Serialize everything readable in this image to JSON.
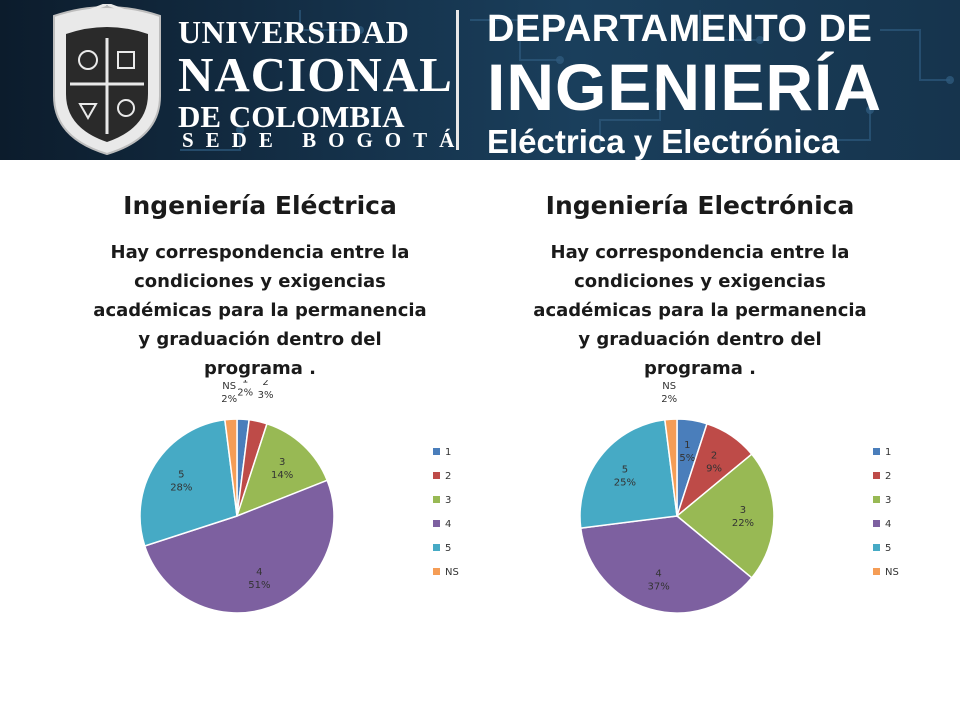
{
  "banner": {
    "university_line1": "UNIVERSIDAD",
    "university_line2": "NACIONAL",
    "university_line3": "DE COLOMBIA",
    "sede": "SEDE BOGOTÁ",
    "dept_line1": "DEPARTAMENTO DE",
    "dept_line2": "INGENIERÍA",
    "dept_line3": "Eléctrica y Electrónica"
  },
  "left": {
    "title": "Ingeniería Eléctrica",
    "question": "Hay correspondencia entre la condiciones y exigencias académicas para la permanencia y graduación dentro del programa ."
  },
  "right": {
    "title": "Ingeniería Electrónica",
    "question": "Hay correspondencia entre la condiciones y exigencias académicas para la permanencia y graduación dentro del programa ."
  },
  "colors": {
    "1": "#4a7ebb",
    "2": "#be4b48",
    "3": "#98b954",
    "4": "#7d60a0",
    "5": "#46aac5",
    "NS": "#f59d56"
  },
  "chart_data": [
    {
      "type": "pie",
      "title": "",
      "categories": [
        "1",
        "2",
        "3",
        "4",
        "5",
        "NS"
      ],
      "values": [
        2,
        3,
        14,
        51,
        28,
        2
      ],
      "labels": [
        "2%",
        "3%",
        "14%",
        "51%",
        "28%",
        "2%"
      ],
      "legend": [
        "1",
        "2",
        "3",
        "4",
        "5",
        "NS"
      ],
      "legend_position": "right"
    },
    {
      "type": "pie",
      "title": "",
      "categories": [
        "1",
        "2",
        "3",
        "4",
        "5",
        "NS"
      ],
      "values": [
        5,
        9,
        22,
        37,
        25,
        2
      ],
      "labels": [
        "5%",
        "9%",
        "22%",
        "37%",
        "25%",
        "2%"
      ],
      "legend": [
        "1",
        "2",
        "3",
        "4",
        "5",
        "NS"
      ],
      "legend_position": "right"
    }
  ]
}
